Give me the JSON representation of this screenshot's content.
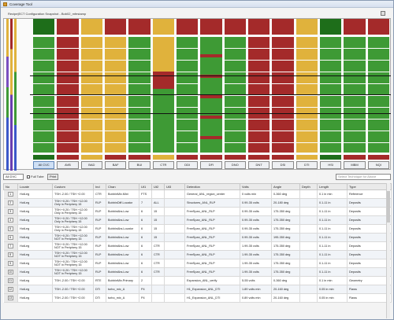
{
  "window": {
    "title": "Coverage Tool"
  },
  "breadcrumb": "Recipe|ECT Configuration Snapshot - Bob02_mfestamp",
  "colors": {
    "green": "#3e9a35",
    "red": "#a42a2a",
    "dark_green": "#1e6e1a",
    "yellow": "#e0b23c",
    "dark_red": "#8c1a1a"
  },
  "blocks": [
    {
      "label": "All CVC",
      "top": "dark_green",
      "body": "green",
      "selected": true
    },
    {
      "label": "AVB",
      "top": "red",
      "body": "red"
    },
    {
      "label": "BAD",
      "top": "yellow",
      "body": "yellow"
    },
    {
      "label": "BAF",
      "top": "red",
      "body": "yellow"
    },
    {
      "label": "BUI",
      "top": "red",
      "body": "green"
    },
    {
      "label": "CTR",
      "top": "yellow",
      "body": "yellow_green"
    },
    {
      "label": "DDI",
      "top": "red",
      "body": "green"
    },
    {
      "label": "DFI",
      "top": "red",
      "body": "green_red"
    },
    {
      "label": "DNO",
      "top": "red",
      "body": "green"
    },
    {
      "label": "DNT",
      "top": "red",
      "body": "red"
    },
    {
      "label": "DSI",
      "top": "red",
      "body": "red"
    },
    {
      "label": "DTI",
      "top": "yellow",
      "body": "yellow"
    },
    {
      "label": "HSI",
      "top": "dark_green",
      "body": "green"
    },
    {
      "label": "MBM",
      "top": "red",
      "body": "green"
    },
    {
      "label": "NQI",
      "top": "red",
      "body": "green"
    }
  ],
  "toolbar": {
    "filter_value": "All DVC",
    "checkbox_label": "Full Tube",
    "print_label": "Print",
    "technique_select": "Select Technique for Above"
  },
  "table": {
    "headers": [
      "No",
      "Locate",
      "Custom",
      "Ind",
      "Chan",
      "Ut1",
      "Ut2",
      "Ut3",
      "Detection",
      "Volts",
      "Angle",
      "Depth",
      "Length",
      "Type"
    ],
    "rows": [
      [
        "1",
        "HotLeg",
        "TSH -2.00 / TSH +2.00",
        "CTR",
        "BobbinMix.Mixt",
        "FTS",
        "",
        "",
        "General_ANL_region_center",
        "0 volts min",
        "0-360 deg",
        "",
        "0.1 in min",
        "Reference"
      ],
      [
        "2",
        "HotLeg",
        "TSH +0.20 / TSH +12.00 Only in Periphery 15",
        "RLP",
        "BobbinDiff.Locator",
        "7",
        "ALL",
        "",
        "Structures_ANL_RLP",
        "0.99-35 volts",
        "20-180 deg",
        "",
        "0.1-11 in",
        "Deposits"
      ],
      [
        "3",
        "HotLeg",
        "TSH +0.20 / TSH +12.00 Only in Periphery 15",
        "RLP",
        "BobbinAbs.Low",
        "6",
        "15",
        "",
        "FreeSpan_ANL_RLP",
        "0.99-35 volts",
        "175-350 deg",
        "",
        "0.1-11 in",
        "Deposits"
      ],
      [
        "4",
        "HotLeg",
        "TSH +0.20 / TSH +12.00 Only in Periphery 15",
        "RLP",
        "BobbinAbs.Low",
        "6",
        "15",
        "",
        "FreeSpan_ANL_RLP",
        "0.99-35 volts",
        "175-350 deg",
        "",
        "0.1-11 in",
        "Deposits"
      ],
      [
        "5",
        "HotLeg",
        "TSH +0.20 / TSH +12.00 Only in Periphery 15",
        "RLP",
        "BobbinAbs.Locator",
        "6",
        "15",
        "",
        "FreeSpan_ANL_RLP",
        "0.99-35 volts",
        "175-350 deg",
        "",
        "0.1-11 in",
        "Deposits"
      ],
      [
        "6",
        "HotLeg",
        "TSH +0.20 / TSH +12.00 NOT in Periphery 15",
        "RLP",
        "BobbinAbs.Low",
        "6",
        "15",
        "",
        "FreeSpan_ANL_RLP",
        "0.99-35 volts",
        "195-350 deg",
        "",
        "0.1-11 in",
        "Deposits"
      ],
      [
        "7",
        "HotLeg",
        "TSH +0.20 / TSH +12.00 NOT in Periphery 15",
        "RLP",
        "BobbinAbs.Low",
        "6",
        "CTR",
        "",
        "FreeSpan_ANL_RLP",
        "1.99-35 volts",
        "175-350 deg",
        "",
        "0.1-11 in",
        "Deposits"
      ],
      [
        "8",
        "HotLeg",
        "TSH +0.20 / TSH +12.00 NOT in Periphery 15",
        "RLP",
        "BobbinAbs.Low",
        "6",
        "CTR",
        "",
        "FreeSpan_ANL_RLP",
        "1.99-35 volts",
        "175-350 deg",
        "",
        "0.1-11 in",
        "Deposits"
      ],
      [
        "9",
        "HotLeg",
        "TSH +0.20 / TSH +12.00 NOT in Periphery 15",
        "RLP",
        "BobbinAbs.Low",
        "6",
        "CTR",
        "",
        "FreeSpan_ANL_RLP",
        "1.99-35 volts",
        "175-350 deg",
        "",
        "0.1-11 in",
        "Deposits"
      ],
      [
        "10",
        "HotLeg",
        "TSH +0.20 / TSH +12.00 NOT in Periphery 15",
        "RLP",
        "BobbinAbs.Low",
        "6",
        "CTR",
        "",
        "FreeSpan_ANL_RLP",
        "1.99-35 volts",
        "175-350 deg",
        "",
        "0.1-11 in",
        "Deposits"
      ],
      [
        "11",
        "HotLeg",
        "TSH -2.00 / TSH +2.00",
        "RTE",
        "BobbinMix.Primary",
        "2",
        "",
        "",
        "Expansion_ANL_verify",
        "5-55 volts",
        "0-360 deg",
        "",
        "0.1 in min",
        "Geometry"
      ],
      [
        "12",
        "HotLeg",
        "TSH -2.00 / TSH +2.00",
        "DTI",
        "turbo_mix_A",
        "P4",
        "",
        "",
        "H1_Expansion_ANL_DTI",
        "1.89 volts min",
        "20-160 deg",
        "",
        "0.05 in min",
        "Flaws"
      ],
      [
        "13",
        "HotLeg",
        "TSH -2.00 / TSH +2.00",
        "DTI",
        "turbo_mix_A",
        "P4",
        "",
        "",
        "H1_Expansion_ANL_DTI",
        "0.89 volts min",
        "20-160 deg",
        "",
        "0.05 in min",
        "Flaws"
      ]
    ]
  }
}
